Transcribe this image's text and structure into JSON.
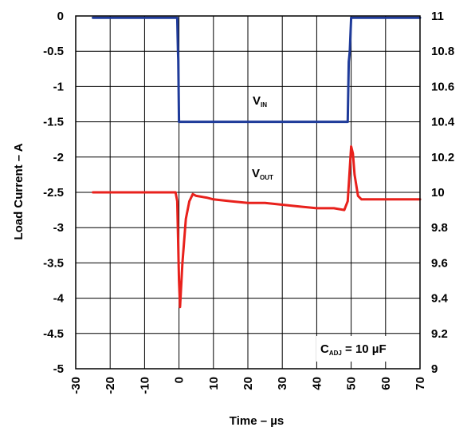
{
  "chart_data": {
    "type": "line",
    "xlabel": "Time – µs",
    "ylabel_left": "Load Current – A",
    "ylabel_right": "",
    "x_ticks": [
      -30,
      -20,
      -10,
      0,
      10,
      20,
      30,
      40,
      50,
      60,
      70
    ],
    "x_tick_labels": [
      "-30",
      "-20",
      "-10",
      "0",
      "10",
      "20",
      "30",
      "40",
      "50",
      "60",
      "70"
    ],
    "xlim": [
      -30,
      70
    ],
    "y_left_ticks": [
      0,
      -0.5,
      -1,
      -1.5,
      -2,
      -2.5,
      -3,
      -3.5,
      -4,
      -4.5,
      -5
    ],
    "y_left_tick_labels": [
      "0",
      "-0.5",
      "-1",
      "-1.5",
      "-2",
      "-2.5",
      "-3",
      "-3.5",
      "-4",
      "-4.5",
      "-5"
    ],
    "ylim_left": [
      -5,
      0
    ],
    "y_right_ticks": [
      11,
      10.8,
      10.6,
      10.4,
      10.2,
      10,
      9.8,
      9.6,
      9.4,
      9.2,
      9
    ],
    "y_right_tick_labels": [
      "11",
      "10.8",
      "10.6",
      "10.4",
      "10.2",
      "10",
      "9.8",
      "9.6",
      "9.4",
      "9.2",
      "9"
    ],
    "ylim_right": [
      9,
      11
    ],
    "grid": true,
    "series": [
      {
        "name": "VIN",
        "label_main": "V",
        "label_sub": "IN",
        "axis": "right",
        "color": "#1f3b9a",
        "x": [
          -25,
          -0.5,
          -0.3,
          -0.2,
          0,
          49,
          49.3,
          49.6,
          50,
          70
        ],
        "y": [
          10.99,
          10.99,
          10.8,
          10.75,
          10.4,
          10.4,
          10.74,
          10.8,
          10.99,
          10.99
        ]
      },
      {
        "name": "VOUT",
        "label_main": "V",
        "label_sub": "OUT",
        "axis": "right",
        "color": "#e8211c",
        "x": [
          -25,
          -20,
          -15,
          -10,
          -5,
          -1,
          -0.5,
          0,
          0.3,
          1,
          2,
          3,
          4,
          5,
          8,
          10,
          15,
          20,
          25,
          30,
          35,
          40,
          45,
          48,
          49,
          49.5,
          50,
          50.5,
          51,
          52,
          53,
          55,
          60,
          65,
          70
        ],
        "y": [
          10.0,
          10.0,
          10.0,
          10.0,
          10.0,
          10.0,
          9.95,
          9.5,
          9.35,
          9.6,
          9.85,
          9.95,
          9.99,
          9.98,
          9.97,
          9.96,
          9.95,
          9.94,
          9.94,
          9.93,
          9.92,
          9.91,
          9.91,
          9.9,
          9.95,
          10.1,
          10.26,
          10.22,
          10.1,
          9.98,
          9.96,
          9.96,
          9.96,
          9.96,
          9.96
        ]
      }
    ],
    "annotation": {
      "main": "C",
      "sub": "ADJ",
      "rest": " = 10 µF"
    }
  }
}
